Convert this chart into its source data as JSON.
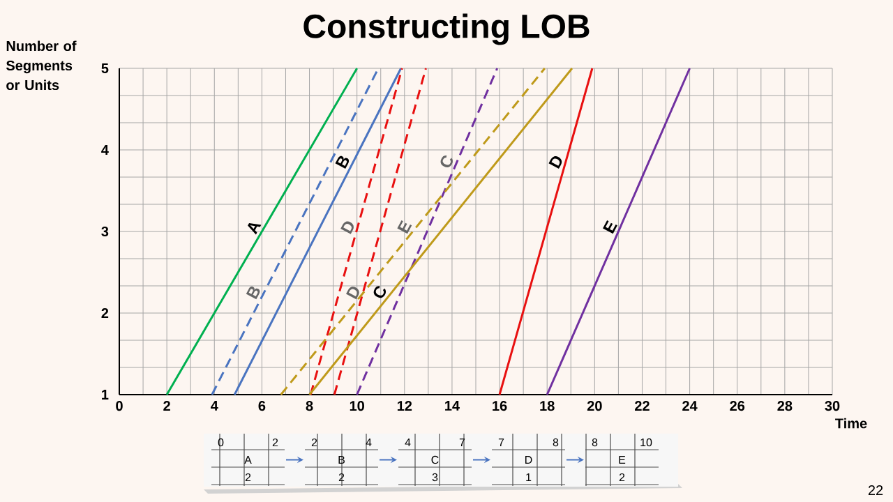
{
  "chart_data": {
    "type": "line",
    "title": "Constructing LOB",
    "xlabel": "Time",
    "ylabel": "Number of Segments or Units",
    "xlim": [
      0,
      30
    ],
    "xticks": [
      0,
      2,
      4,
      6,
      8,
      10,
      12,
      14,
      16,
      18,
      20,
      22,
      24,
      26,
      28,
      30
    ],
    "ylim": [
      1,
      5
    ],
    "yticks": [
      1,
      2,
      3,
      4,
      5
    ],
    "grid": true,
    "marker": "none",
    "series": [
      {
        "name": "A",
        "color": "#00b050",
        "x": [
          2,
          10
        ],
        "values": [
          1,
          5
        ],
        "line_style": "solid"
      },
      {
        "name": "B",
        "color": "#4a74c0",
        "x": [
          3.9,
          10.9
        ],
        "values": [
          1,
          5
        ],
        "line_style": "dashed"
      },
      {
        "name": "B",
        "color": "#4a74c0",
        "x": [
          4.85,
          11.85
        ],
        "values": [
          1,
          5
        ],
        "line_style": "solid"
      },
      {
        "name": "D",
        "color": "#e81010",
        "x": [
          8.05,
          11.9
        ],
        "values": [
          1,
          5
        ],
        "line_style": "dashed"
      },
      {
        "name": "D",
        "color": "#e81010",
        "x": [
          9.05,
          12.9
        ],
        "values": [
          1,
          5
        ],
        "line_style": "dashed"
      },
      {
        "name": "C",
        "color": "#7030a0",
        "x": [
          10,
          15.9
        ],
        "values": [
          1,
          5
        ],
        "line_style": "dashed"
      },
      {
        "name": "E",
        "color": "#bf9a1a",
        "x": [
          6.8,
          17.9
        ],
        "values": [
          1,
          5
        ],
        "line_style": "dashed"
      },
      {
        "name": "C",
        "color": "#bf9a1a",
        "x": [
          8,
          19.05
        ],
        "values": [
          1,
          5
        ],
        "line_style": "solid"
      },
      {
        "name": "D",
        "color": "#e81010",
        "x": [
          16,
          19.9
        ],
        "values": [
          1,
          5
        ],
        "line_style": "solid"
      },
      {
        "name": "E",
        "color": "#7030a0",
        "x": [
          18,
          24
        ],
        "values": [
          1,
          5
        ],
        "line_style": "solid"
      }
    ],
    "annotations": [
      "0",
      "2",
      "A",
      "2",
      "2",
      "4",
      "B",
      "2",
      "4",
      "7",
      "C",
      "3",
      "7",
      "8",
      "D",
      "1",
      "8",
      "10",
      "E",
      "2",
      "22"
    ]
  }
}
